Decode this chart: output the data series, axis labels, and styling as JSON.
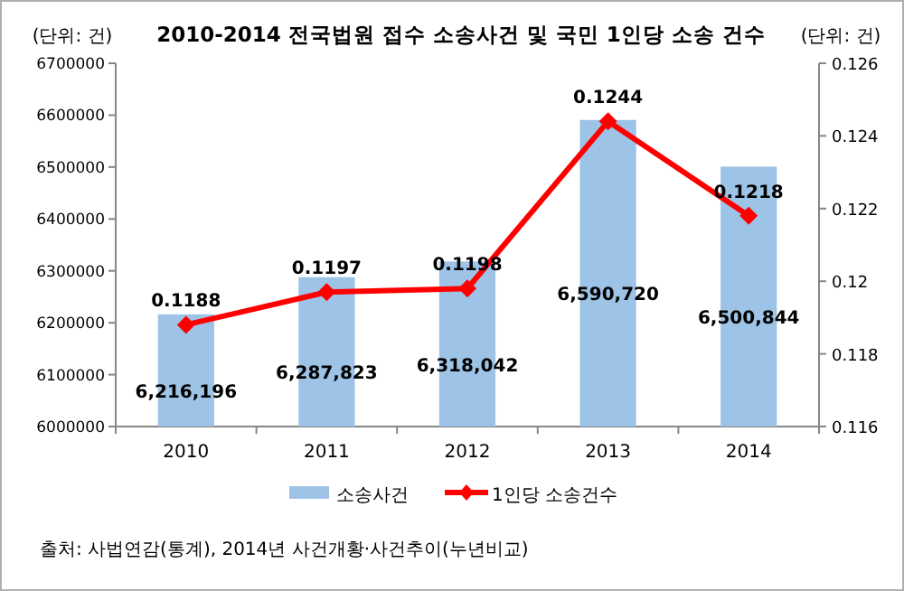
{
  "chart_data": {
    "type": "bar",
    "title": "2010-2014 전국법원 접수 소송사건 및 국민 1인당 소송 건수",
    "categories": [
      "2010",
      "2011",
      "2012",
      "2013",
      "2014"
    ],
    "series": [
      {
        "name": "소송사건",
        "color": "#9dc3e6",
        "values": [
          6216196,
          6287823,
          6318042,
          6590720,
          6500844
        ],
        "value_labels": [
          "6,216,196",
          "6,287,823",
          "6,318,042",
          "6,590,720",
          "6,500,844"
        ]
      },
      {
        "name": "1인당 소송건수",
        "type": "line",
        "axis": "y2",
        "color": "#ff0000",
        "marker": "diamond",
        "values": [
          0.1188,
          0.1197,
          0.1198,
          0.1244,
          0.1218
        ]
      }
    ],
    "data_labels": true,
    "ylim": [
      6000000,
      6700000
    ],
    "yticks": [
      6000000,
      6100000,
      6200000,
      6300000,
      6400000,
      6500000,
      6600000,
      6700000
    ],
    "y2lim": [
      0.116,
      0.126
    ],
    "y2ticks": [
      0.116,
      0.118,
      0.12,
      0.122,
      0.124,
      0.126
    ],
    "legend": "bottom",
    "grid": false,
    "annotations": [
      "(단위: 건)",
      "(단위: 건)",
      "출처: 사법연감(통계), 2014년 사건개황·사건추이(누년비교)"
    ]
  }
}
